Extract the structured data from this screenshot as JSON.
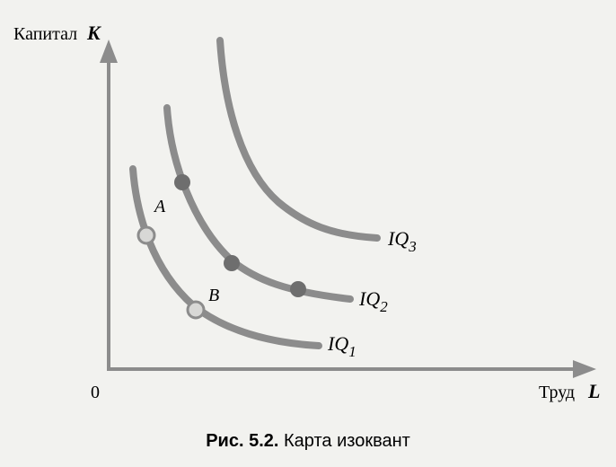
{
  "axes": {
    "y_label": "Капитал",
    "y_symbol": "K",
    "x_label": "Труд",
    "x_symbol": "L",
    "origin": "0"
  },
  "curves": [
    {
      "name": "IQ",
      "index": "1"
    },
    {
      "name": "IQ",
      "index": "2"
    },
    {
      "name": "IQ",
      "index": "3"
    }
  ],
  "points": [
    {
      "label": "A"
    },
    {
      "label": "B"
    }
  ],
  "caption": {
    "number": "Рис. 5.2.",
    "title": "Карта изоквант"
  }
}
